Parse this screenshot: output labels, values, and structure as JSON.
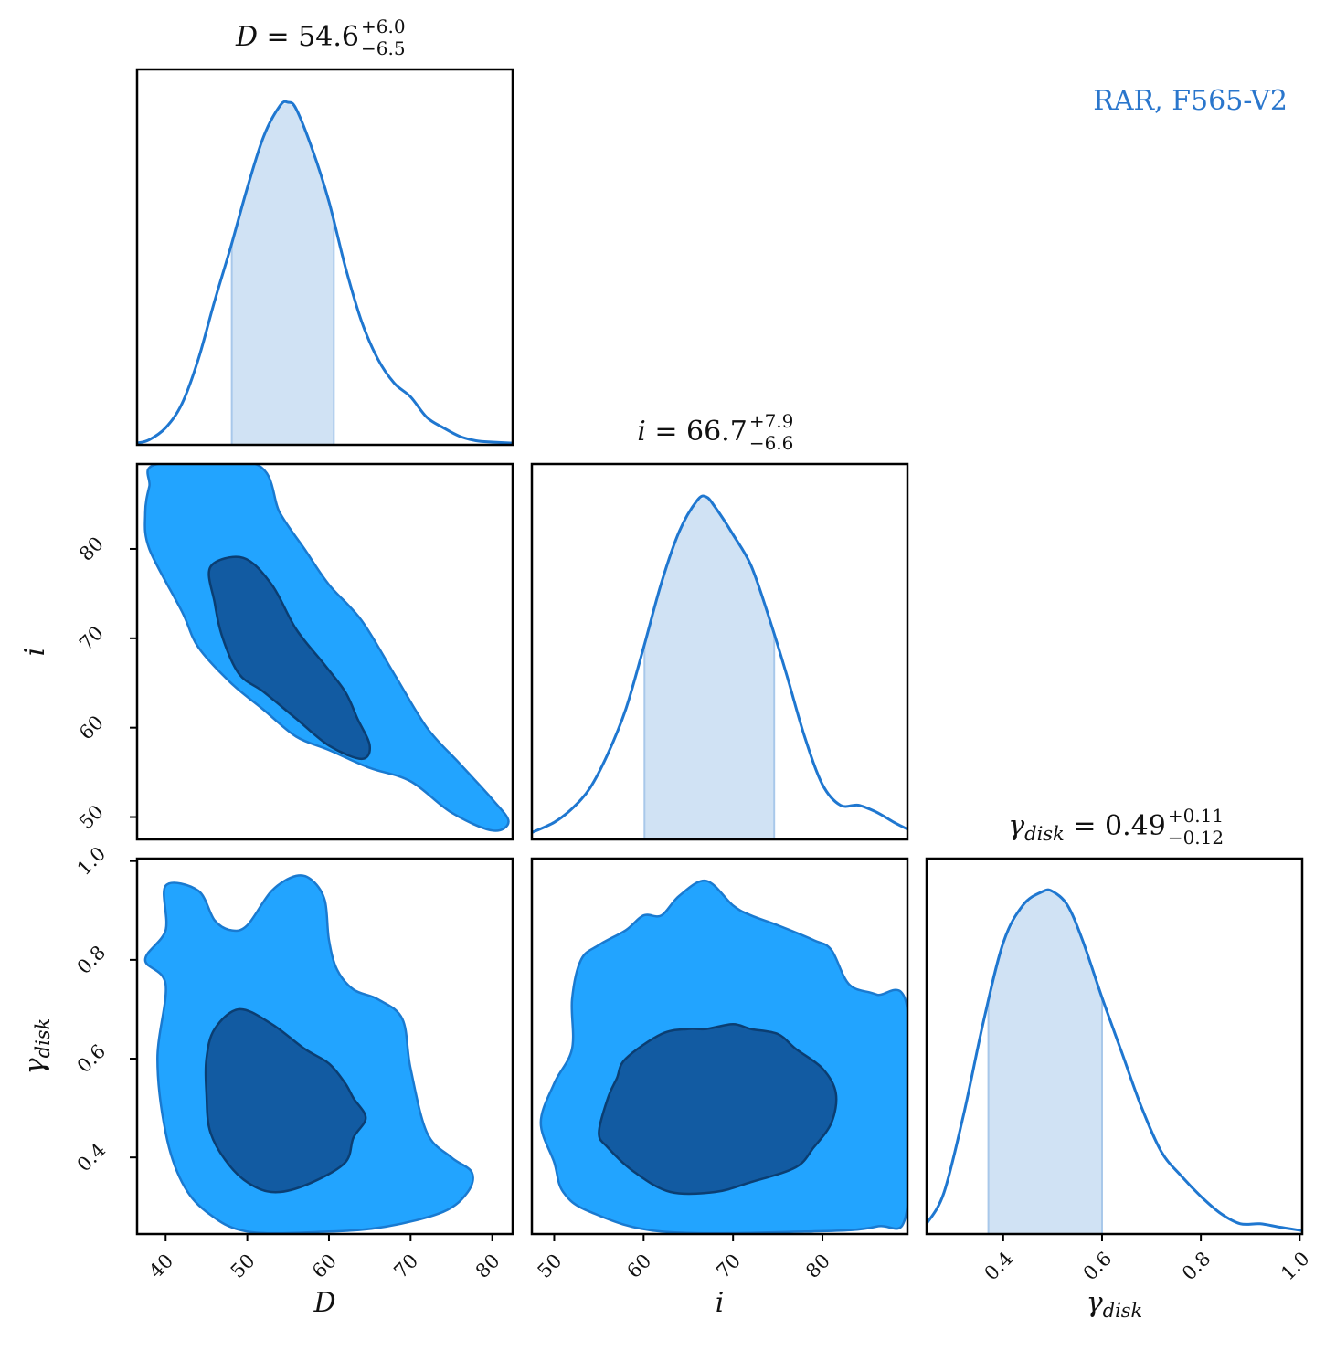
{
  "chart_data": {
    "type": "corner",
    "label": "RAR, F565-V2",
    "colors": {
      "line": "#1f77d0",
      "band": "#d0e2f4",
      "contour_outer": "#22a4ff",
      "contour_inner": "#125ba2",
      "contour_edge_outer": "#1a7ad0",
      "contour_edge_inner": "#0b3e72",
      "label": "#2a76cc"
    },
    "parameters": [
      {
        "symbol": "D",
        "sub": "",
        "median": "54.6",
        "plus": "+6.0",
        "minus": "−6.5",
        "range": [
          36.5,
          82.5
        ],
        "ticks": [
          "40",
          "50",
          "60",
          "70",
          "80"
        ],
        "band": [
          48.1,
          60.6
        ]
      },
      {
        "symbol": "i",
        "sub": "",
        "median": "66.7",
        "plus": "+7.9",
        "minus": "−6.6",
        "range": [
          47.5,
          89.5
        ],
        "ticks": [
          "50",
          "60",
          "70",
          "80"
        ],
        "band": [
          60.1,
          74.6
        ]
      },
      {
        "symbol": "γ",
        "sub": "disk",
        "median": "0.49",
        "plus": "+0.11",
        "minus": "−0.12",
        "range": [
          0.245,
          1.005
        ],
        "ticks": [
          "0.4",
          "0.6",
          "0.8",
          "1.0"
        ],
        "band": [
          0.37,
          0.6
        ]
      }
    ],
    "marginals": [
      {
        "param": 0,
        "x": [
          36.5,
          38,
          40,
          42,
          44,
          46,
          48,
          50,
          52,
          54,
          55,
          56,
          58,
          60,
          62,
          64,
          66,
          68,
          70,
          72,
          74,
          76,
          78,
          80,
          82.5
        ],
        "y": [
          0.005,
          0.015,
          0.05,
          0.12,
          0.25,
          0.42,
          0.58,
          0.75,
          0.9,
          0.99,
          1.0,
          0.98,
          0.86,
          0.71,
          0.52,
          0.36,
          0.25,
          0.18,
          0.14,
          0.08,
          0.05,
          0.025,
          0.012,
          0.008,
          0.005
        ]
      },
      {
        "param": 1,
        "x": [
          47.5,
          50,
          52,
          54,
          56,
          58,
          60,
          62,
          64,
          66,
          67,
          68,
          70,
          72,
          74,
          76,
          78,
          80,
          82,
          84,
          86,
          88,
          89.5
        ],
        "y": [
          0.02,
          0.05,
          0.09,
          0.15,
          0.25,
          0.38,
          0.56,
          0.75,
          0.9,
          0.99,
          1.0,
          0.97,
          0.89,
          0.8,
          0.65,
          0.48,
          0.3,
          0.16,
          0.1,
          0.1,
          0.08,
          0.05,
          0.03
        ]
      },
      {
        "param": 2,
        "x": [
          0.245,
          0.28,
          0.32,
          0.36,
          0.4,
          0.44,
          0.48,
          0.5,
          0.53,
          0.56,
          0.6,
          0.64,
          0.68,
          0.72,
          0.76,
          0.8,
          0.84,
          0.88,
          0.92,
          0.96,
          1.005
        ],
        "y": [
          0.03,
          0.12,
          0.35,
          0.62,
          0.85,
          0.96,
          1.0,
          1.0,
          0.96,
          0.86,
          0.69,
          0.53,
          0.37,
          0.24,
          0.17,
          0.11,
          0.06,
          0.03,
          0.03,
          0.02,
          0.01
        ]
      }
    ],
    "pairs": [
      {
        "x_param": 0,
        "y_param": 1,
        "outer": [
          [
            39,
            89.5
          ],
          [
            51,
            89.5
          ],
          [
            54,
            84
          ],
          [
            57,
            80
          ],
          [
            60,
            76
          ],
          [
            64,
            72
          ],
          [
            68,
            66
          ],
          [
            72,
            60
          ],
          [
            76,
            56
          ],
          [
            80,
            52
          ],
          [
            82,
            49.5
          ],
          [
            80,
            48.5
          ],
          [
            75,
            50.5
          ],
          [
            70,
            54
          ],
          [
            65,
            55.5
          ],
          [
            60,
            57.5
          ],
          [
            56,
            59
          ],
          [
            52,
            62
          ],
          [
            48,
            65
          ],
          [
            44,
            69
          ],
          [
            42,
            73
          ],
          [
            38,
            80
          ],
          [
            37.5,
            84
          ],
          [
            38,
            87
          ]
        ],
        "inner": [
          [
            45.5,
            78
          ],
          [
            49.5,
            79
          ],
          [
            53,
            76
          ],
          [
            56,
            71
          ],
          [
            59.5,
            67
          ],
          [
            62,
            64
          ],
          [
            63.5,
            61
          ],
          [
            65,
            58
          ],
          [
            64,
            56.5
          ],
          [
            60,
            58
          ],
          [
            56,
            61
          ],
          [
            52,
            64
          ],
          [
            49,
            66
          ],
          [
            47,
            70
          ],
          [
            46,
            74
          ]
        ]
      },
      {
        "x_param": 0,
        "y_param": 2,
        "outer": [
          [
            40,
            0.95
          ],
          [
            44,
            0.94
          ],
          [
            46,
            0.88
          ],
          [
            48,
            0.86
          ],
          [
            50,
            0.87
          ],
          [
            53,
            0.94
          ],
          [
            56,
            0.97
          ],
          [
            58,
            0.96
          ],
          [
            59.5,
            0.92
          ],
          [
            60,
            0.84
          ],
          [
            61,
            0.78
          ],
          [
            63,
            0.74
          ],
          [
            66,
            0.72
          ],
          [
            69,
            0.68
          ],
          [
            70,
            0.58
          ],
          [
            72,
            0.45
          ],
          [
            75,
            0.4
          ],
          [
            77.5,
            0.37
          ],
          [
            77,
            0.33
          ],
          [
            74,
            0.29
          ],
          [
            67,
            0.26
          ],
          [
            60,
            0.25
          ],
          [
            50,
            0.25
          ],
          [
            45,
            0.29
          ],
          [
            42,
            0.35
          ],
          [
            40,
            0.45
          ],
          [
            39,
            0.6
          ],
          [
            40,
            0.75
          ],
          [
            37.5,
            0.8
          ],
          [
            40,
            0.86
          ]
        ],
        "inner": [
          [
            46,
            0.66
          ],
          [
            49,
            0.7
          ],
          [
            53,
            0.67
          ],
          [
            57,
            0.62
          ],
          [
            60,
            0.59
          ],
          [
            62,
            0.55
          ],
          [
            63,
            0.52
          ],
          [
            64.5,
            0.48
          ],
          [
            63,
            0.44
          ],
          [
            62,
            0.39
          ],
          [
            58,
            0.35
          ],
          [
            54,
            0.33
          ],
          [
            51,
            0.34
          ],
          [
            48,
            0.38
          ],
          [
            45.5,
            0.45
          ],
          [
            45,
            0.53
          ],
          [
            45,
            0.6
          ]
        ]
      },
      {
        "x_param": 1,
        "y_param": 2,
        "outer": [
          [
            55,
            0.83
          ],
          [
            58,
            0.86
          ],
          [
            60,
            0.89
          ],
          [
            62,
            0.89
          ],
          [
            64,
            0.93
          ],
          [
            67,
            0.96
          ],
          [
            70,
            0.91
          ],
          [
            72,
            0.89
          ],
          [
            75,
            0.87
          ],
          [
            79,
            0.84
          ],
          [
            81,
            0.82
          ],
          [
            83,
            0.75
          ],
          [
            86,
            0.73
          ],
          [
            89.5,
            0.7
          ],
          [
            89.5,
            0.3
          ],
          [
            86,
            0.26
          ],
          [
            78,
            0.25
          ],
          [
            62,
            0.25
          ],
          [
            54,
            0.29
          ],
          [
            51,
            0.33
          ],
          [
            50,
            0.39
          ],
          [
            48.5,
            0.47
          ],
          [
            50,
            0.55
          ],
          [
            52,
            0.62
          ],
          [
            52,
            0.72
          ],
          [
            53,
            0.8
          ]
        ],
        "inner": [
          [
            58,
            0.6
          ],
          [
            62,
            0.65
          ],
          [
            65,
            0.66
          ],
          [
            67,
            0.66
          ],
          [
            70,
            0.67
          ],
          [
            72,
            0.66
          ],
          [
            75,
            0.65
          ],
          [
            77,
            0.62
          ],
          [
            80,
            0.58
          ],
          [
            81.5,
            0.53
          ],
          [
            81,
            0.47
          ],
          [
            79,
            0.42
          ],
          [
            77,
            0.38
          ],
          [
            72,
            0.35
          ],
          [
            68,
            0.33
          ],
          [
            63,
            0.33
          ],
          [
            59,
            0.37
          ],
          [
            56,
            0.42
          ],
          [
            55,
            0.45
          ],
          [
            56,
            0.52
          ],
          [
            57,
            0.56
          ]
        ]
      }
    ]
  }
}
